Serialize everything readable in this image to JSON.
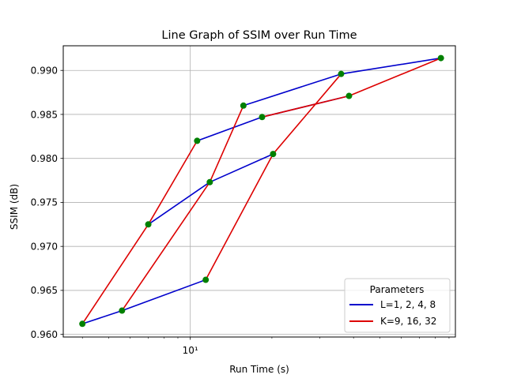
{
  "chart_data": {
    "type": "line",
    "title": "Line Graph of SSIM over Run Time",
    "xlabel": "Run Time (s)",
    "ylabel": "SSIM (dB)",
    "xscale": "log",
    "xlim": [
      3.4,
      95
    ],
    "ylim": [
      0.9597,
      0.9928
    ],
    "xticks": [
      {
        "value": 10,
        "label": "10"
      }
    ],
    "xtick_label_display": "10¹",
    "yticks": [
      0.96,
      0.965,
      0.97,
      0.975,
      0.98,
      0.985,
      0.99
    ],
    "ytick_labels": [
      "0.960",
      "0.965",
      "0.970",
      "0.975",
      "0.980",
      "0.985",
      "0.990"
    ],
    "grid": true,
    "legend": {
      "title": "Parameters",
      "position": "lower-right",
      "entries": [
        {
          "label": "L=1, 2, 4, 8",
          "color": "#0000cc"
        },
        {
          "label": "K=9, 16, 32",
          "color": "#dd0000"
        }
      ]
    },
    "marker_color": "#008000",
    "series": [
      {
        "name": "L=1, 2, 4, 8",
        "color": "#0000cc",
        "points": [
          [
            4.0,
            0.9612
          ],
          [
            5.6,
            0.9627
          ],
          [
            11.4,
            0.9662
          ]
        ]
      },
      {
        "name": "L=1, 2, 4, 8",
        "color": "#0000cc",
        "points": [
          [
            7.0,
            0.9725
          ],
          [
            11.8,
            0.9773
          ],
          [
            20.2,
            0.9805
          ]
        ]
      },
      {
        "name": "L=1, 2, 4, 8",
        "color": "#0000cc",
        "points": [
          [
            10.6,
            0.982
          ],
          [
            18.4,
            0.9847
          ],
          [
            38.5,
            0.9871
          ]
        ]
      },
      {
        "name": "L=1, 2, 4, 8",
        "color": "#0000cc",
        "points": [
          [
            15.7,
            0.986
          ],
          [
            36.0,
            0.9896
          ],
          [
            84.0,
            0.9914
          ]
        ]
      },
      {
        "name": "K=9, 16, 32",
        "color": "#dd0000",
        "points": [
          [
            4.0,
            0.9612
          ],
          [
            7.0,
            0.9725
          ],
          [
            10.6,
            0.982
          ]
        ]
      },
      {
        "name": "K=9, 16, 32",
        "color": "#dd0000",
        "points": [
          [
            5.6,
            0.9627
          ],
          [
            11.8,
            0.9773
          ],
          [
            15.7,
            0.986
          ]
        ]
      },
      {
        "name": "K=9, 16, 32",
        "color": "#dd0000",
        "points": [
          [
            11.4,
            0.9662
          ],
          [
            20.2,
            0.9805
          ],
          [
            36.0,
            0.9896
          ]
        ]
      },
      {
        "name": "K=9, 16, 32",
        "color": "#dd0000",
        "points": [
          [
            18.4,
            0.9847
          ],
          [
            38.5,
            0.9871
          ],
          [
            84.0,
            0.9914
          ]
        ]
      }
    ]
  }
}
